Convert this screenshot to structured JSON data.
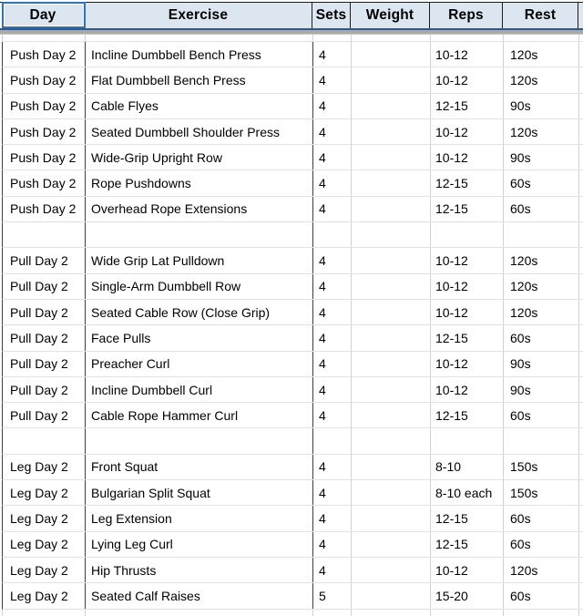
{
  "sheet": {
    "header": {
      "day": "Day",
      "exercise": "Exercise",
      "sets": "Sets",
      "weight": "Weight",
      "reps": "Reps",
      "rest": "Rest"
    },
    "active_cell": "Day",
    "rows": [
      {
        "day": "Push Day 2",
        "exercise": "Incline Dumbbell Bench Press",
        "sets": "4",
        "weight": "",
        "reps": "10-12",
        "rest": "120s"
      },
      {
        "day": "Push Day 2",
        "exercise": "Flat Dumbbell Bench Press",
        "sets": "4",
        "weight": "",
        "reps": "10-12",
        "rest": "120s"
      },
      {
        "day": "Push Day 2",
        "exercise": "Cable Flyes",
        "sets": "4",
        "weight": "",
        "reps": "12-15",
        "rest": "90s"
      },
      {
        "day": "Push Day 2",
        "exercise": "Seated Dumbbell Shoulder Press",
        "sets": "4",
        "weight": "",
        "reps": "10-12",
        "rest": "120s"
      },
      {
        "day": "Push Day 2",
        "exercise": "Wide-Grip Upright Row",
        "sets": "4",
        "weight": "",
        "reps": "10-12",
        "rest": "90s"
      },
      {
        "day": "Push Day 2",
        "exercise": "Rope Pushdowns",
        "sets": "4",
        "weight": "",
        "reps": "12-15",
        "rest": "60s"
      },
      {
        "day": "Push Day 2",
        "exercise": "Overhead Rope Extensions",
        "sets": "4",
        "weight": "",
        "reps": "12-15",
        "rest": "60s"
      },
      {
        "day": "",
        "exercise": "",
        "sets": "",
        "weight": "",
        "reps": "",
        "rest": ""
      },
      {
        "day": "Pull Day 2",
        "exercise": "Wide Grip Lat Pulldown",
        "sets": "4",
        "weight": "",
        "reps": "10-12",
        "rest": "120s"
      },
      {
        "day": "Pull Day 2",
        "exercise": "Single-Arm Dumbbell Row",
        "sets": "4",
        "weight": "",
        "reps": "10-12",
        "rest": "120s"
      },
      {
        "day": "Pull Day 2",
        "exercise": "Seated Cable Row (Close Grip)",
        "sets": "4",
        "weight": "",
        "reps": "10-12",
        "rest": "120s"
      },
      {
        "day": "Pull Day 2",
        "exercise": "Face Pulls",
        "sets": "4",
        "weight": "",
        "reps": "12-15",
        "rest": "60s"
      },
      {
        "day": "Pull Day 2",
        "exercise": "Preacher Curl",
        "sets": "4",
        "weight": "",
        "reps": "10-12",
        "rest": "90s"
      },
      {
        "day": "Pull Day 2",
        "exercise": "Incline Dumbbell Curl",
        "sets": "4",
        "weight": "",
        "reps": "10-12",
        "rest": "90s"
      },
      {
        "day": "Pull Day 2",
        "exercise": "Cable Rope Hammer Curl",
        "sets": "4",
        "weight": "",
        "reps": "12-15",
        "rest": "60s"
      },
      {
        "day": "",
        "exercise": "",
        "sets": "",
        "weight": "",
        "reps": "",
        "rest": ""
      },
      {
        "day": "Leg Day 2",
        "exercise": "Front Squat",
        "sets": "4",
        "weight": "",
        "reps": "8-10",
        "rest": "150s"
      },
      {
        "day": "Leg Day 2",
        "exercise": "Bulgarian Split Squat",
        "sets": "4",
        "weight": "",
        "reps": "8-10 each",
        "rest": "150s"
      },
      {
        "day": "Leg Day 2",
        "exercise": "Leg Extension",
        "sets": "4",
        "weight": "",
        "reps": "12-15",
        "rest": "60s"
      },
      {
        "day": "Leg Day 2",
        "exercise": "Lying Leg Curl",
        "sets": "4",
        "weight": "",
        "reps": "12-15",
        "rest": "60s"
      },
      {
        "day": "Leg Day 2",
        "exercise": "Hip Thrusts",
        "sets": "4",
        "weight": "",
        "reps": "10-12",
        "rest": "120s"
      },
      {
        "day": "Leg Day 2",
        "exercise": "Seated Calf Raises",
        "sets": "5",
        "weight": "",
        "reps": "15-20",
        "rest": "60s"
      }
    ]
  },
  "colors": {
    "header_fill": "#dce6f1",
    "header_border": "#1c1c1c",
    "header_bottom_line": "#35587c",
    "freeze_bar": "#a9a9a9",
    "grid_light": "#d2d2d2",
    "grid_dark": "#3f3f3f",
    "selection_blue": "#2e74b5",
    "text": "#000000"
  }
}
